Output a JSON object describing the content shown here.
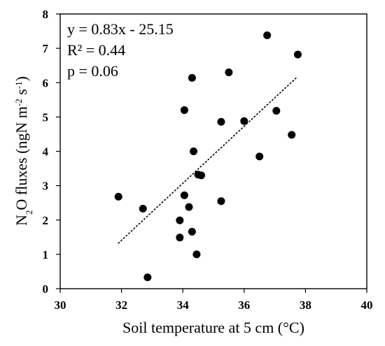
{
  "chart_data": {
    "type": "scatter",
    "xlabel": "Soil temperature at 5 cm (°C)",
    "ylabel": {
      "prefix": "N",
      "sub": "2",
      "mid": "O fluxes (ngN m",
      "sup1": "-2",
      "mid2": " s",
      "sup2": "-1",
      "suffix": ")"
    },
    "xlim": [
      30,
      40
    ],
    "ylim": [
      0,
      8
    ],
    "xticks": [
      30,
      32,
      34,
      36,
      38,
      40
    ],
    "yticks": [
      0,
      1,
      2,
      3,
      4,
      5,
      6,
      7,
      8
    ],
    "grid": false,
    "legend": "none",
    "points": [
      {
        "x": 31.9,
        "y": 2.68
      },
      {
        "x": 32.7,
        "y": 2.33
      },
      {
        "x": 32.85,
        "y": 0.33
      },
      {
        "x": 33.9,
        "y": 1.99
      },
      {
        "x": 33.9,
        "y": 1.49
      },
      {
        "x": 34.05,
        "y": 5.2
      },
      {
        "x": 34.05,
        "y": 2.72
      },
      {
        "x": 34.2,
        "y": 2.38
      },
      {
        "x": 34.3,
        "y": 6.14
      },
      {
        "x": 34.3,
        "y": 1.66
      },
      {
        "x": 34.35,
        "y": 4.0
      },
      {
        "x": 34.45,
        "y": 1.0
      },
      {
        "x": 34.5,
        "y": 3.32
      },
      {
        "x": 34.6,
        "y": 3.3
      },
      {
        "x": 35.25,
        "y": 4.86
      },
      {
        "x": 35.25,
        "y": 2.55
      },
      {
        "x": 35.5,
        "y": 6.3
      },
      {
        "x": 36.0,
        "y": 4.88
      },
      {
        "x": 36.5,
        "y": 3.85
      },
      {
        "x": 36.75,
        "y": 7.38
      },
      {
        "x": 37.05,
        "y": 5.18
      },
      {
        "x": 37.55,
        "y": 4.48
      },
      {
        "x": 37.75,
        "y": 6.82
      }
    ],
    "trendline": {
      "x_start": 31.9,
      "x_end": 37.7,
      "slope": 0.83,
      "intercept": -25.15,
      "style": "dotted"
    },
    "annotations": [
      "y = 0.83x - 25.15",
      "R² = 0.44",
      "p = 0.06"
    ],
    "colors": {
      "points": "#000000",
      "trendline": "#000000",
      "axes": "#000000"
    }
  }
}
